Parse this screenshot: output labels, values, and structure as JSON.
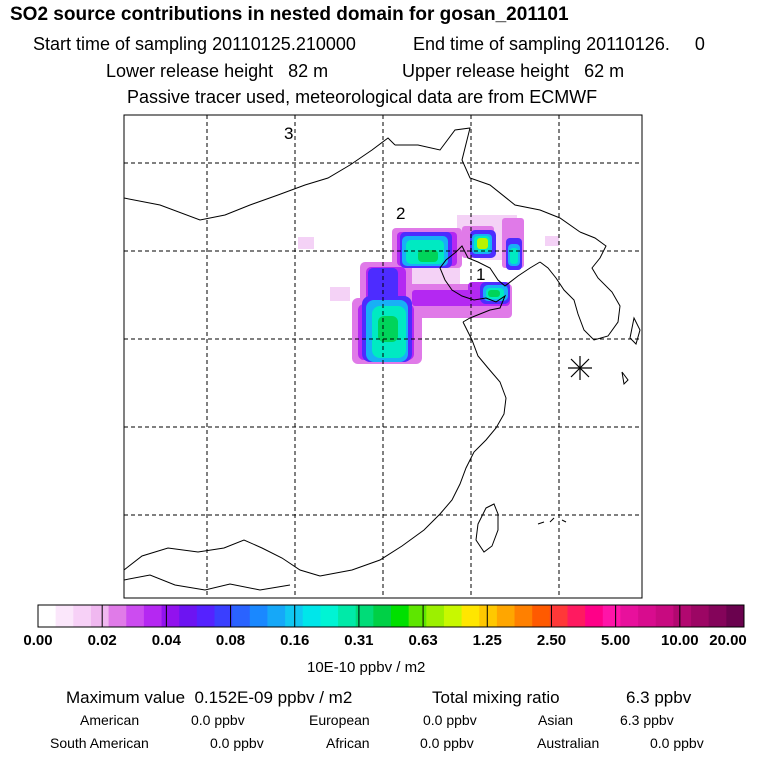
{
  "header": {
    "title": "SO2 source contributions in nested domain for gosan_201101",
    "start_label": "Start time of sampling 20110125.210000",
    "end_label": "End time of sampling 20110126.     0",
    "lower_height": "Lower release height   82 m",
    "upper_height": "Upper release height   62 m",
    "tracer_note": "Passive tracer used, meteorological data are from ECMWF"
  },
  "map": {
    "markers": [
      {
        "label": "1",
        "name": "marker-1"
      },
      {
        "label": "2",
        "name": "marker-2"
      },
      {
        "label": "3",
        "name": "marker-3"
      }
    ],
    "receptor_icon": "asterisk-receptor-icon"
  },
  "colorbar": {
    "ticks": [
      "0.00",
      "0.02",
      "0.04",
      "0.08",
      "0.16",
      "0.31",
      "0.63",
      "1.25",
      "2.50",
      "5.00",
      "10.00",
      "20.00"
    ],
    "colors": [
      "#ffffff",
      "#fbe7fb",
      "#f7d1f7",
      "#f0b8f0",
      "#e07be8",
      "#cc4cf0",
      "#b528f2",
      "#9212ee",
      "#6d14f2",
      "#5522ff",
      "#3a3fff",
      "#2a63ff",
      "#1a88ff",
      "#16a8f8",
      "#10c8f2",
      "#00e6ea",
      "#00f4d4",
      "#00eaa8",
      "#00dc78",
      "#00d046",
      "#00e000",
      "#5ee600",
      "#9cf000",
      "#c8f800",
      "#ffe600",
      "#ffc800",
      "#ffa600",
      "#ff8000",
      "#ff5a00",
      "#ff3838",
      "#ff1a60",
      "#ff0088",
      "#ff14a8",
      "#e8109c",
      "#d80c8e",
      "#c80a80",
      "#b20870",
      "#9c0664",
      "#84045a",
      "#6a024e"
    ],
    "unit": "10E-10 ppbv / m2"
  },
  "summary": {
    "max_value": "Maximum value  0.152E-09 ppbv / m2",
    "total_label": "Total mixing ratio",
    "total_value": "6.3 ppbv",
    "regions": [
      {
        "name": "American",
        "value": "0.0 ppbv"
      },
      {
        "name": "European",
        "value": "0.0 ppbv"
      },
      {
        "name": "Asian",
        "value": "6.3 ppbv"
      },
      {
        "name": "South American",
        "value": "0.0 ppbv"
      },
      {
        "name": "African",
        "value": "0.0 ppbv"
      },
      {
        "name": "Australian",
        "value": "0.0 ppbv"
      }
    ]
  }
}
